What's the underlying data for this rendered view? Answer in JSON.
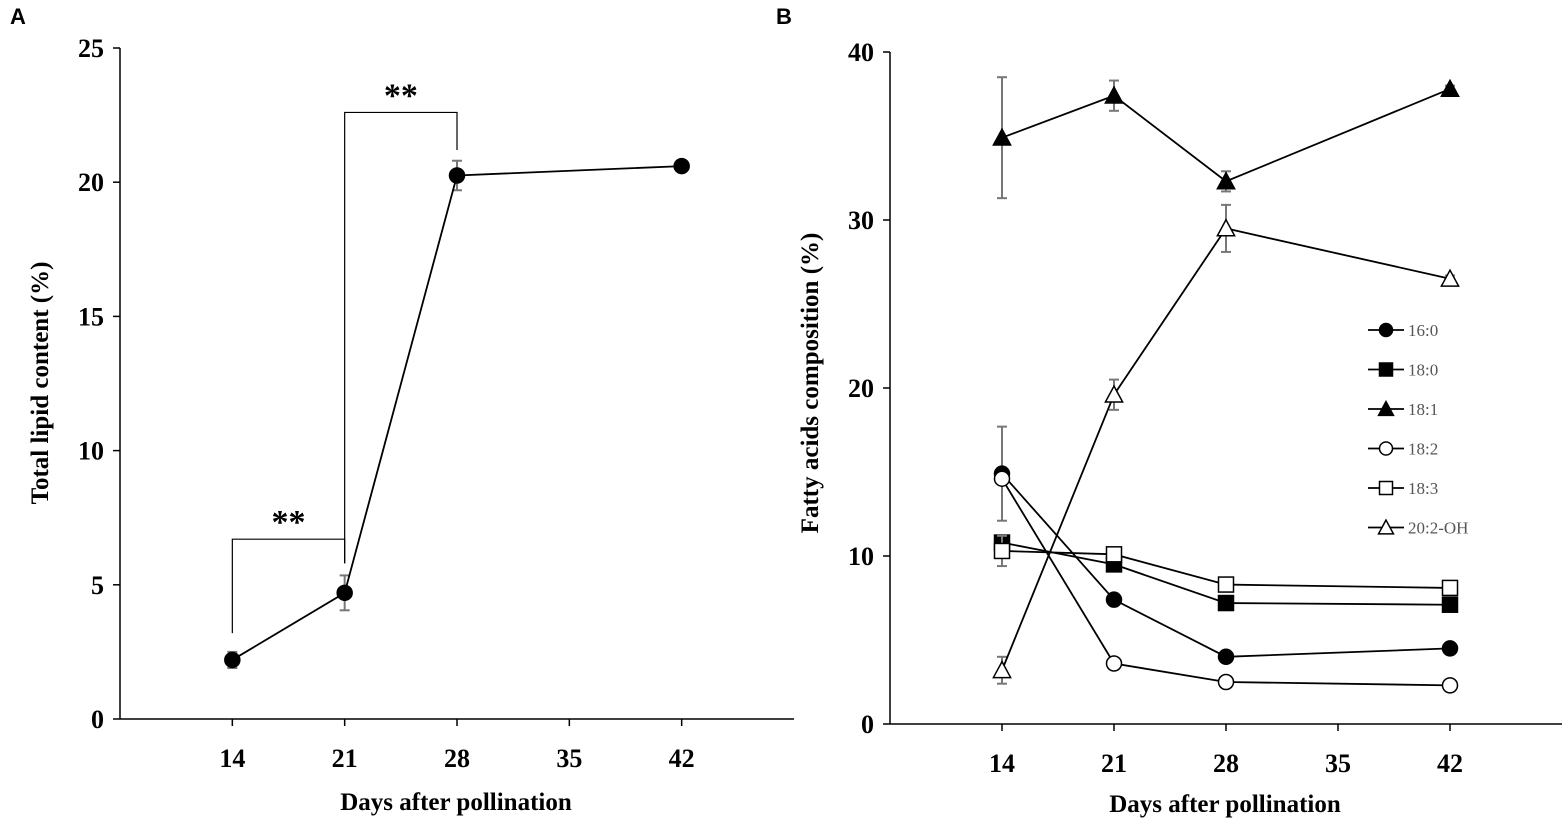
{
  "chart_data": [
    {
      "type": "line",
      "panel_label": "A",
      "title": "",
      "xlabel": "Days after pollination",
      "ylabel": "Total lipid content (%)",
      "xlim": [
        7,
        49
      ],
      "ylim": [
        0,
        25
      ],
      "x_ticks": [
        14,
        21,
        28,
        35,
        42
      ],
      "y_ticks": [
        0,
        5,
        10,
        15,
        20,
        25
      ],
      "grid": false,
      "series": [
        {
          "name": "Total lipid",
          "marker": "circle-filled",
          "x": [
            14,
            21,
            28,
            42
          ],
          "values": [
            2.2,
            4.7,
            20.25,
            20.6
          ],
          "errors": [
            0.3,
            0.65,
            0.55,
            0.05
          ]
        }
      ],
      "annotations": [
        {
          "label": "**",
          "x1": 14,
          "x2": 21,
          "y_from": 3.2,
          "y_bar": 6.7,
          "y_to": 5.8
        },
        {
          "label": "**",
          "x1": 21,
          "x2": 28,
          "y_from": 5.8,
          "y_bar": 22.6,
          "y_to": 21.2
        }
      ]
    },
    {
      "type": "line",
      "panel_label": "B",
      "title": "",
      "xlabel": "Days after pollination",
      "ylabel": "Fatty acids composition (%)",
      "xlim": [
        7,
        49
      ],
      "ylim": [
        0,
        40
      ],
      "x_ticks": [
        14,
        21,
        28,
        35,
        42
      ],
      "y_ticks": [
        0,
        10,
        20,
        30,
        40
      ],
      "grid": false,
      "legend_position": "right",
      "series": [
        {
          "name": "16:0",
          "marker": "circle-filled",
          "x": [
            14,
            21,
            28,
            42
          ],
          "values": [
            14.9,
            7.4,
            4.0,
            4.5
          ],
          "errors": [
            2.8,
            0.3,
            0.3,
            0.2
          ]
        },
        {
          "name": "18:0",
          "marker": "square-filled",
          "x": [
            14,
            21,
            28,
            42
          ],
          "values": [
            10.8,
            9.5,
            7.2,
            7.1
          ],
          "errors": [
            0.3,
            0.3,
            0.3,
            0.2
          ]
        },
        {
          "name": "18:1",
          "marker": "triangle-filled",
          "x": [
            14,
            21,
            28,
            42
          ],
          "values": [
            34.9,
            37.4,
            32.3,
            37.8
          ],
          "errors": [
            3.6,
            0.9,
            0.6,
            0.2
          ]
        },
        {
          "name": "18:2",
          "marker": "circle-open",
          "x": [
            14,
            21,
            28,
            42
          ],
          "values": [
            14.6,
            3.6,
            2.5,
            2.3
          ],
          "errors": [
            0.3,
            0.2,
            0.1,
            0.1
          ]
        },
        {
          "name": "18:3",
          "marker": "square-open",
          "x": [
            14,
            21,
            28,
            42
          ],
          "values": [
            10.3,
            10.1,
            8.3,
            8.1
          ],
          "errors": [
            0.9,
            0.3,
            0.3,
            0.2
          ]
        },
        {
          "name": "20:2-OH",
          "marker": "triangle-open",
          "x": [
            14,
            21,
            28,
            42
          ],
          "values": [
            3.2,
            19.6,
            29.5,
            26.5
          ],
          "errors": [
            0.8,
            0.9,
            1.4,
            0.2
          ]
        }
      ]
    }
  ]
}
